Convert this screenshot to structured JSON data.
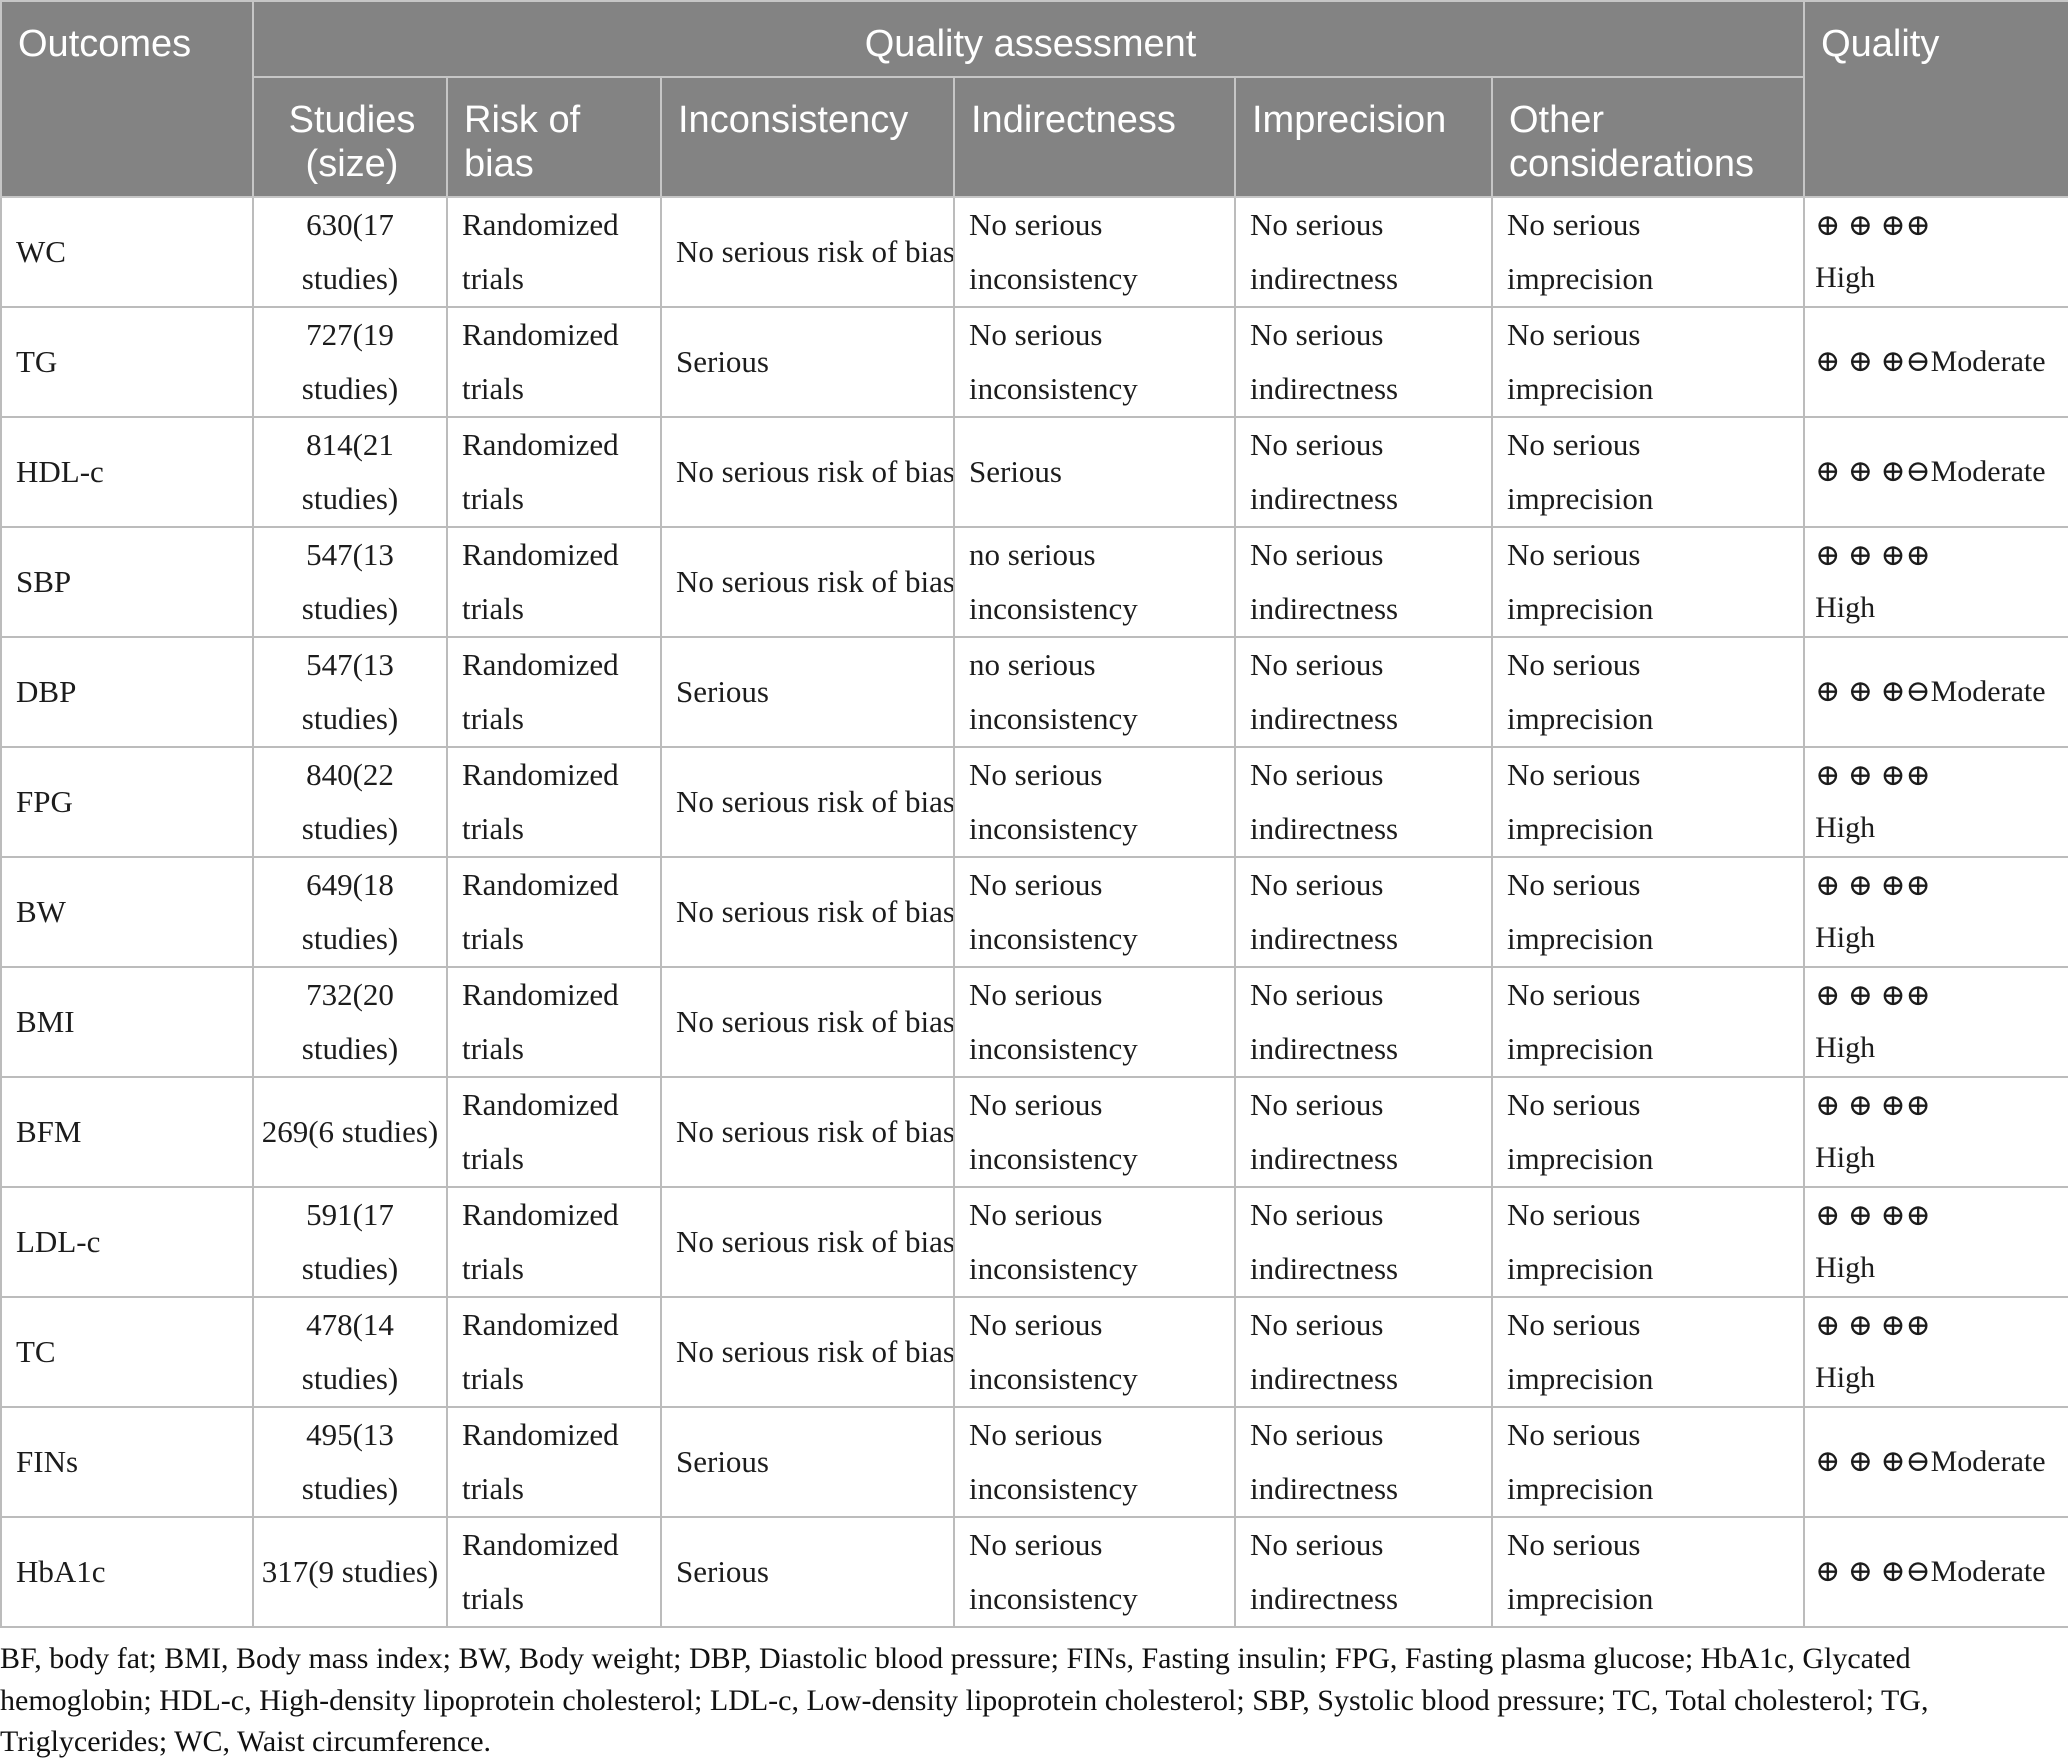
{
  "colors": {
    "header_bg": "#838383",
    "header_text": "#ffffff",
    "body_text": "#1c1c1c",
    "grid_line": "#bcbcbc"
  },
  "table": {
    "header": {
      "outcomes_label": "Outcomes",
      "quality_assessment_label": "Quality assessment",
      "quality_label": "Quality",
      "subheaders": {
        "studies": "Studies (size)",
        "risk_of_bias": "Risk of bias",
        "inconsistency": "Inconsistency",
        "indirectness": "Indirectness",
        "imprecision": "Imprecision",
        "other_considerations": "Other considerations"
      }
    },
    "rows": [
      {
        "outcome": "WC",
        "studies": "630(17 studies)",
        "risk_of_bias": "Randomized trials",
        "inconsistency": "No serious risk of bias",
        "indirectness": "No serious inconsistency",
        "imprecision": "No serious indirectness",
        "other_considerations": "No serious imprecision",
        "quality": "⊕ ⊕ ⊕⊕\nHigh"
      },
      {
        "outcome": "TG",
        "studies": "727(19 studies)",
        "risk_of_bias": "Randomized trials",
        "inconsistency": "Serious",
        "indirectness": "No serious inconsistency",
        "imprecision": "No serious indirectness",
        "other_considerations": "No serious imprecision",
        "quality": "⊕ ⊕ ⊕⊖Moderate"
      },
      {
        "outcome": "HDL-c",
        "studies": "814(21 studies)",
        "risk_of_bias": "Randomized trials",
        "inconsistency": "No serious risk of bias",
        "indirectness": "Serious",
        "imprecision": "No serious indirectness",
        "other_considerations": "No serious imprecision",
        "quality": "⊕ ⊕ ⊕⊖Moderate"
      },
      {
        "outcome": "SBP",
        "studies": "547(13 studies)",
        "risk_of_bias": "Randomized trials",
        "inconsistency": "No serious risk of bias",
        "indirectness": "no serious inconsistency",
        "imprecision": "No serious indirectness",
        "other_considerations": "No serious imprecision",
        "quality": "⊕ ⊕ ⊕⊕\nHigh"
      },
      {
        "outcome": "DBP",
        "studies": "547(13 studies)",
        "risk_of_bias": "Randomized trials",
        "inconsistency": "Serious",
        "indirectness": "no serious inconsistency",
        "imprecision": "No serious indirectness",
        "other_considerations": "No serious imprecision",
        "quality": "⊕ ⊕ ⊕⊖Moderate"
      },
      {
        "outcome": "FPG",
        "studies": "840(22 studies)",
        "risk_of_bias": "Randomized trials",
        "inconsistency": "No serious risk of bias",
        "indirectness": "No serious inconsistency",
        "imprecision": "No serious indirectness",
        "other_considerations": "No serious imprecision",
        "quality": "⊕ ⊕ ⊕⊕\nHigh"
      },
      {
        "outcome": "BW",
        "studies": "649(18 studies)",
        "risk_of_bias": "Randomized trials",
        "inconsistency": "No serious risk of bias",
        "indirectness": "No serious inconsistency",
        "imprecision": "No serious indirectness",
        "other_considerations": "No serious imprecision",
        "quality": "⊕ ⊕ ⊕⊕\nHigh"
      },
      {
        "outcome": "BMI",
        "studies": "732(20 studies)",
        "risk_of_bias": "Randomized trials",
        "inconsistency": "No serious risk of bias",
        "indirectness": "No serious inconsistency",
        "imprecision": "No serious indirectness",
        "other_considerations": "No serious imprecision",
        "quality": "⊕ ⊕ ⊕⊕\nHigh"
      },
      {
        "outcome": "BFM",
        "studies": "269(6 studies)",
        "risk_of_bias": "Randomized trials",
        "inconsistency": "No serious risk of bias",
        "indirectness": "No serious inconsistency",
        "imprecision": "No serious indirectness",
        "other_considerations": "No serious imprecision",
        "quality": "⊕ ⊕ ⊕⊕\nHigh"
      },
      {
        "outcome": "LDL-c",
        "studies": "591(17 studies)",
        "risk_of_bias": "Randomized trials",
        "inconsistency": "No serious risk of bias",
        "indirectness": "No serious inconsistency",
        "imprecision": "No serious indirectness",
        "other_considerations": "No serious imprecision",
        "quality": "⊕ ⊕ ⊕⊕\nHigh"
      },
      {
        "outcome": "TC",
        "studies": "478(14 studies)",
        "risk_of_bias": "Randomized trials",
        "inconsistency": "No serious risk of bias",
        "indirectness": "No serious inconsistency",
        "imprecision": "No serious indirectness",
        "other_considerations": "No serious imprecision",
        "quality": "⊕ ⊕ ⊕⊕\nHigh"
      },
      {
        "outcome": "FINs",
        "studies": "495(13 studies)",
        "risk_of_bias": "Randomized trials",
        "inconsistency": "Serious",
        "indirectness": "No serious inconsistency",
        "imprecision": "No serious indirectness",
        "other_considerations": "No serious imprecision",
        "quality": "⊕ ⊕ ⊕⊖Moderate"
      },
      {
        "outcome": "HbA1c",
        "studies": "317(9 studies)",
        "risk_of_bias": "Randomized trials",
        "inconsistency": "Serious",
        "indirectness": "No serious inconsistency",
        "imprecision": "No serious indirectness",
        "other_considerations": "No serious imprecision",
        "quality": "⊕ ⊕ ⊕⊖Moderate"
      }
    ]
  },
  "footnote": "BF, body fat; BMI, Body mass index; BW, Body weight; DBP, Diastolic blood pressure; FINs, Fasting insulin; FPG, Fasting plasma glucose; HbA1c, Glycated hemoglobin; HDL-c, High-density lipoprotein cholesterol; LDL-c, Low-density lipoprotein cholesterol; SBP, Systolic blood pressure; TC, Total cholesterol; TG, Triglycerides; WC, Waist circumference."
}
